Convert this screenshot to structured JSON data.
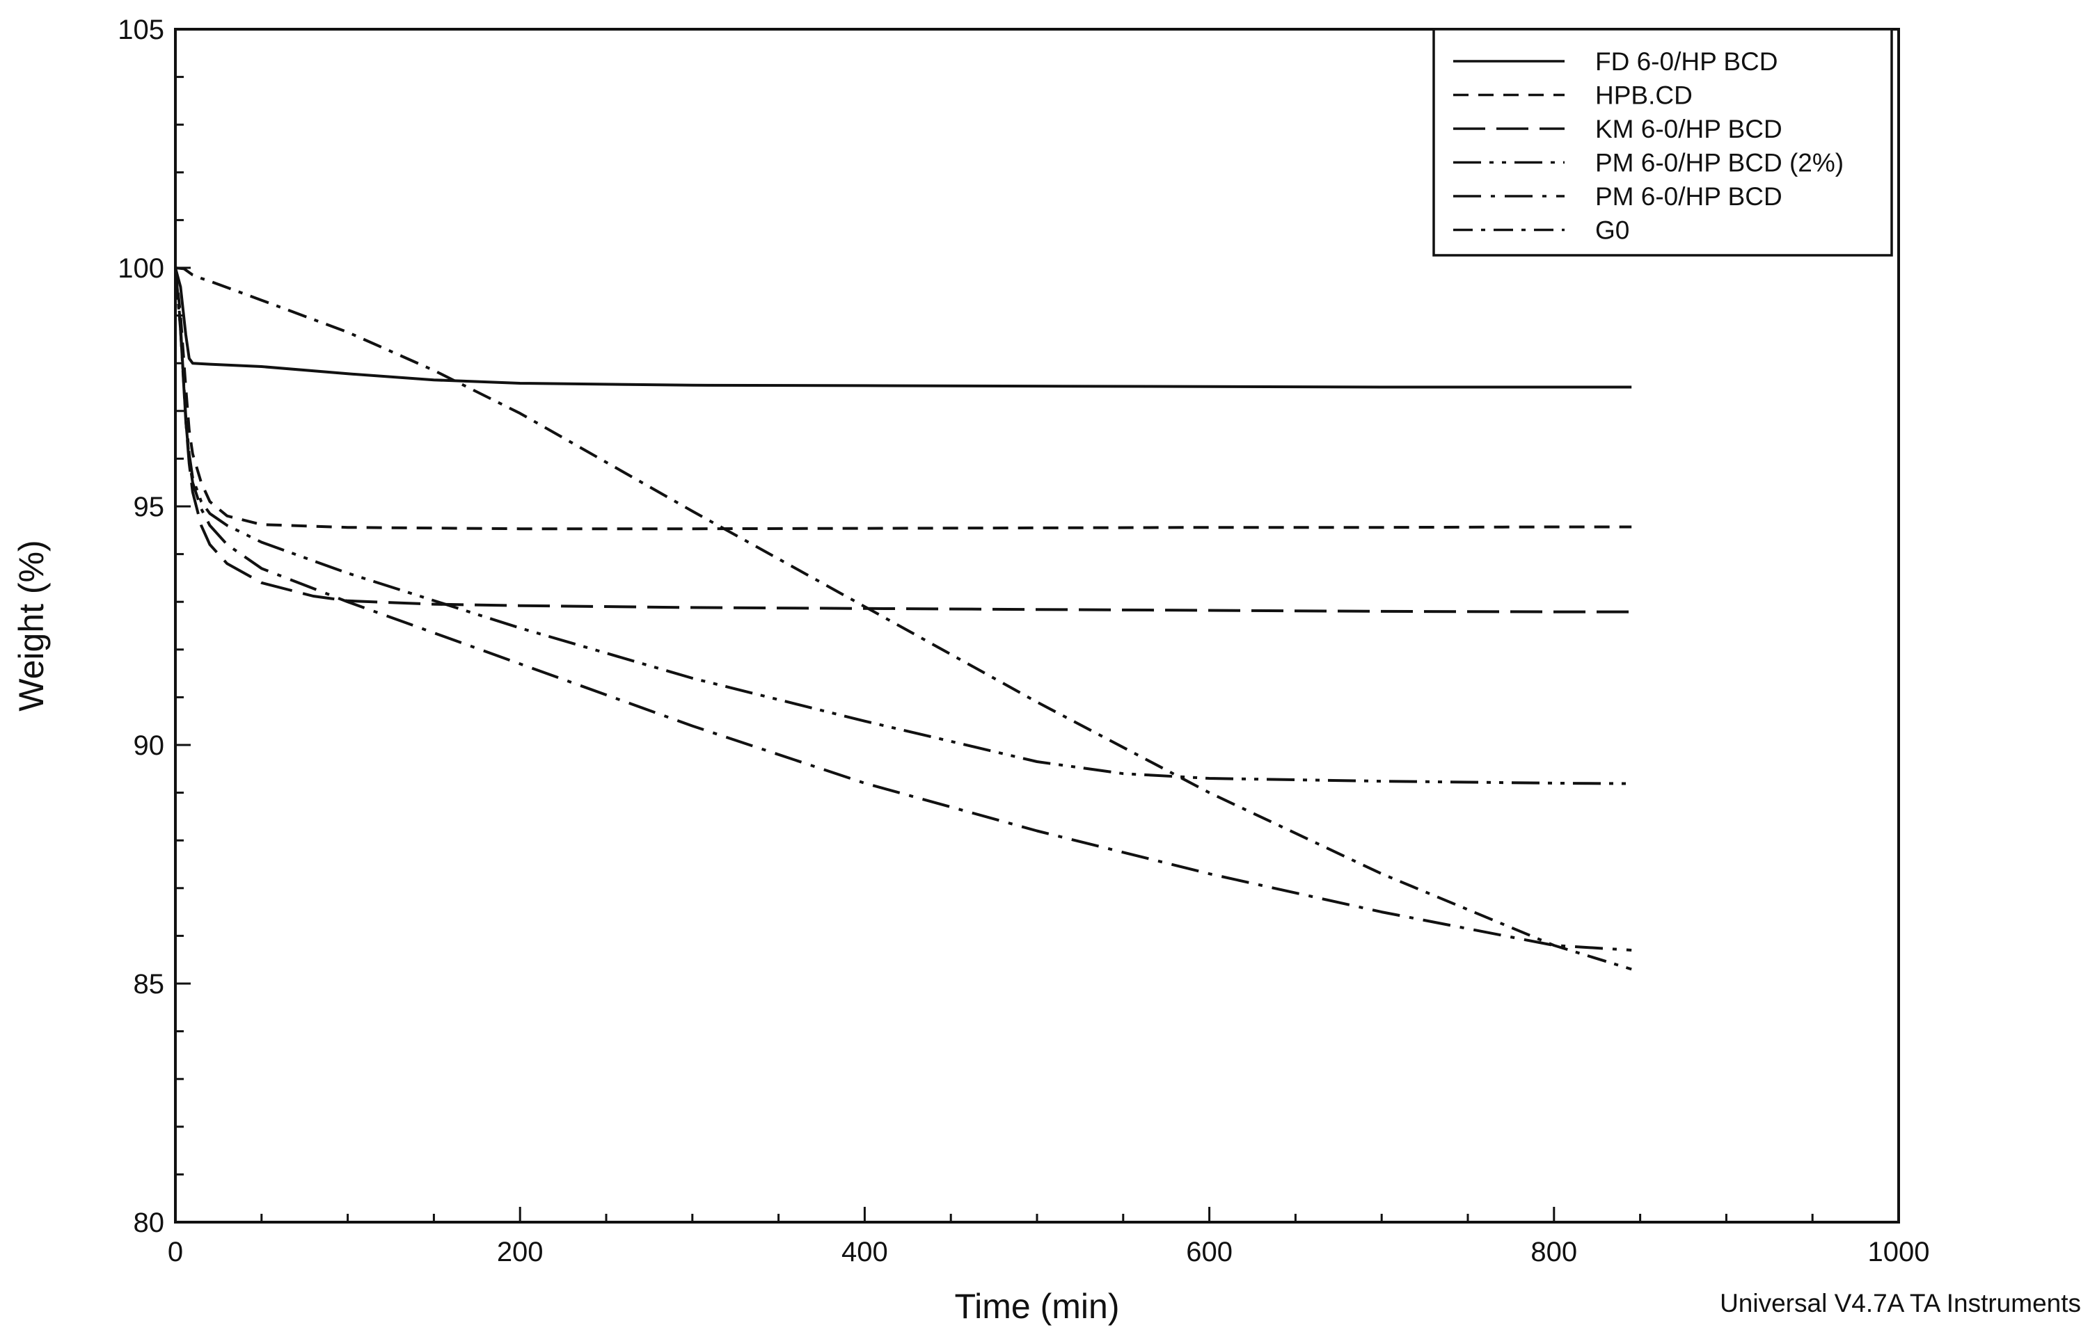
{
  "chart_data": {
    "type": "line",
    "title": "",
    "xlabel": "Time (min)",
    "ylabel": "Weight (%)",
    "xlim": [
      0,
      1000
    ],
    "ylim": [
      80,
      105
    ],
    "x_ticks": [
      0,
      200,
      400,
      600,
      800,
      1000
    ],
    "y_ticks": [
      80,
      85,
      90,
      95,
      100,
      105
    ],
    "x_minor_step": 50,
    "y_minor_step": 1,
    "grid": false,
    "legend_position": "top-right",
    "footer": "Universal V4.7A TA Instruments",
    "series": [
      {
        "name": "FD 6-0/HP BCD",
        "dash": "solid",
        "x": [
          0,
          3,
          6,
          8,
          10,
          20,
          50,
          100,
          150,
          200,
          300,
          400,
          500,
          600,
          700,
          800,
          845
        ],
        "y": [
          100,
          99.6,
          98.6,
          98.1,
          98.0,
          97.98,
          97.93,
          97.78,
          97.65,
          97.58,
          97.54,
          97.53,
          97.52,
          97.51,
          97.5,
          97.5,
          97.5
        ]
      },
      {
        "name": "HPB.CD",
        "dash": "dashed",
        "x": [
          0,
          3,
          6,
          8,
          10,
          15,
          20,
          30,
          50,
          100,
          200,
          300,
          400,
          500,
          600,
          700,
          800,
          845
        ],
        "y": [
          100,
          99.0,
          97.5,
          96.6,
          96.1,
          95.5,
          95.1,
          94.8,
          94.62,
          94.56,
          94.53,
          94.53,
          94.54,
          94.55,
          94.56,
          94.56,
          94.57,
          94.57
        ]
      },
      {
        "name": "KM 6-0/HP BCD",
        "dash": "longdash",
        "x": [
          0,
          3,
          6,
          8,
          10,
          15,
          20,
          30,
          50,
          80,
          100,
          150,
          200,
          300,
          400,
          500,
          600,
          700,
          800,
          845
        ],
        "y": [
          100,
          98.8,
          96.8,
          95.9,
          95.3,
          94.6,
          94.2,
          93.8,
          93.4,
          93.12,
          93.02,
          92.95,
          92.92,
          92.88,
          92.86,
          92.84,
          92.82,
          92.8,
          92.79,
          92.79
        ]
      },
      {
        "name": "PM 6-0/HP BCD (2%)",
        "dash": "dashdotdot",
        "x": [
          0,
          3,
          6,
          8,
          10,
          15,
          20,
          30,
          50,
          100,
          200,
          300,
          400,
          500,
          550,
          600,
          700,
          800,
          845
        ],
        "y": [
          100,
          98.7,
          96.9,
          96.1,
          95.6,
          95.1,
          94.85,
          94.6,
          94.25,
          93.6,
          92.45,
          91.4,
          90.5,
          89.65,
          89.4,
          89.3,
          89.24,
          89.2,
          89.19
        ]
      },
      {
        "name": "PM 6-0/HP BCD",
        "dash": "dashdot",
        "x": [
          0,
          3,
          6,
          8,
          10,
          15,
          20,
          30,
          50,
          100,
          200,
          300,
          400,
          500,
          600,
          700,
          800,
          845
        ],
        "y": [
          100,
          98.7,
          96.8,
          96.0,
          95.5,
          94.95,
          94.6,
          94.2,
          93.7,
          93.0,
          91.7,
          90.4,
          89.2,
          88.2,
          87.3,
          86.5,
          85.8,
          85.7
        ]
      },
      {
        "name": "G0",
        "dash": "dashdotlong",
        "x": [
          0,
          5,
          10,
          15,
          20,
          50,
          100,
          150,
          200,
          300,
          400,
          500,
          600,
          700,
          800,
          845
        ],
        "y": [
          100,
          99.98,
          99.85,
          99.78,
          99.72,
          99.32,
          98.65,
          97.85,
          96.95,
          94.9,
          92.9,
          90.9,
          89.0,
          87.3,
          85.8,
          85.3
        ]
      }
    ]
  }
}
